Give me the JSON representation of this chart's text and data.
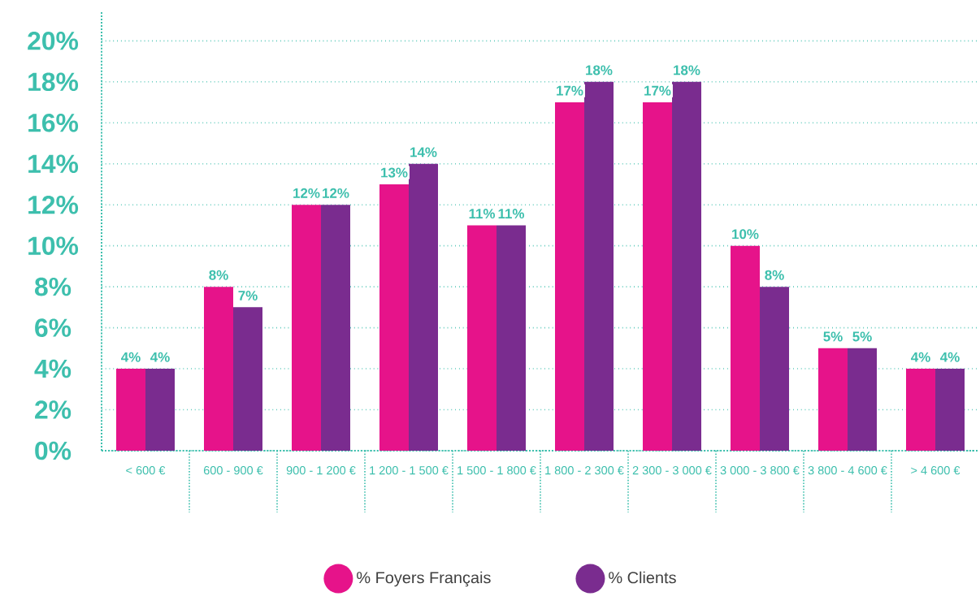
{
  "chart_data": {
    "type": "bar",
    "categories": [
      "< 600 €",
      "600 - 900 €",
      "900 - 1 200 €",
      "1 200 - 1 500 €",
      "1 500 - 1 800 €",
      "1 800 - 2 300 €",
      "2 300 - 3 000 €",
      "3 000 - 3 800 €",
      "3 800 - 4 600 €",
      "> 4 600 €"
    ],
    "series": [
      {
        "name": "% Foyers Français",
        "color": "#e6138a",
        "values": [
          4,
          8,
          12,
          13,
          11,
          17,
          17,
          10,
          5,
          4
        ],
        "value_labels": [
          "4%",
          "8%",
          "12%",
          "13%",
          "11%",
          "17%",
          "17%",
          "10%",
          "5%",
          "4%"
        ]
      },
      {
        "name": "% Clients",
        "color": "#7a2c8f",
        "values": [
          4,
          7,
          12,
          14,
          11,
          18,
          18,
          8,
          5,
          4
        ],
        "value_labels": [
          "4%",
          "7%",
          "12%",
          "14%",
          "11%",
          "18%",
          "18%",
          "8%",
          "5%",
          "4%"
        ]
      }
    ],
    "ylim": [
      0,
      21.4
    ],
    "yticks": [
      {
        "value": 0,
        "label": "0%"
      },
      {
        "value": 2,
        "label": "2%"
      },
      {
        "value": 4,
        "label": "4%"
      },
      {
        "value": 6,
        "label": "6%"
      },
      {
        "value": 8,
        "label": "8%"
      },
      {
        "value": 10,
        "label": "10%"
      },
      {
        "value": 12,
        "label": "12%"
      },
      {
        "value": 14,
        "label": "14%"
      },
      {
        "value": 16,
        "label": "16%"
      },
      {
        "value": 18,
        "label": "18%"
      },
      {
        "value": 20,
        "label": "20%"
      }
    ],
    "grid": "y",
    "legend": "bottom"
  }
}
